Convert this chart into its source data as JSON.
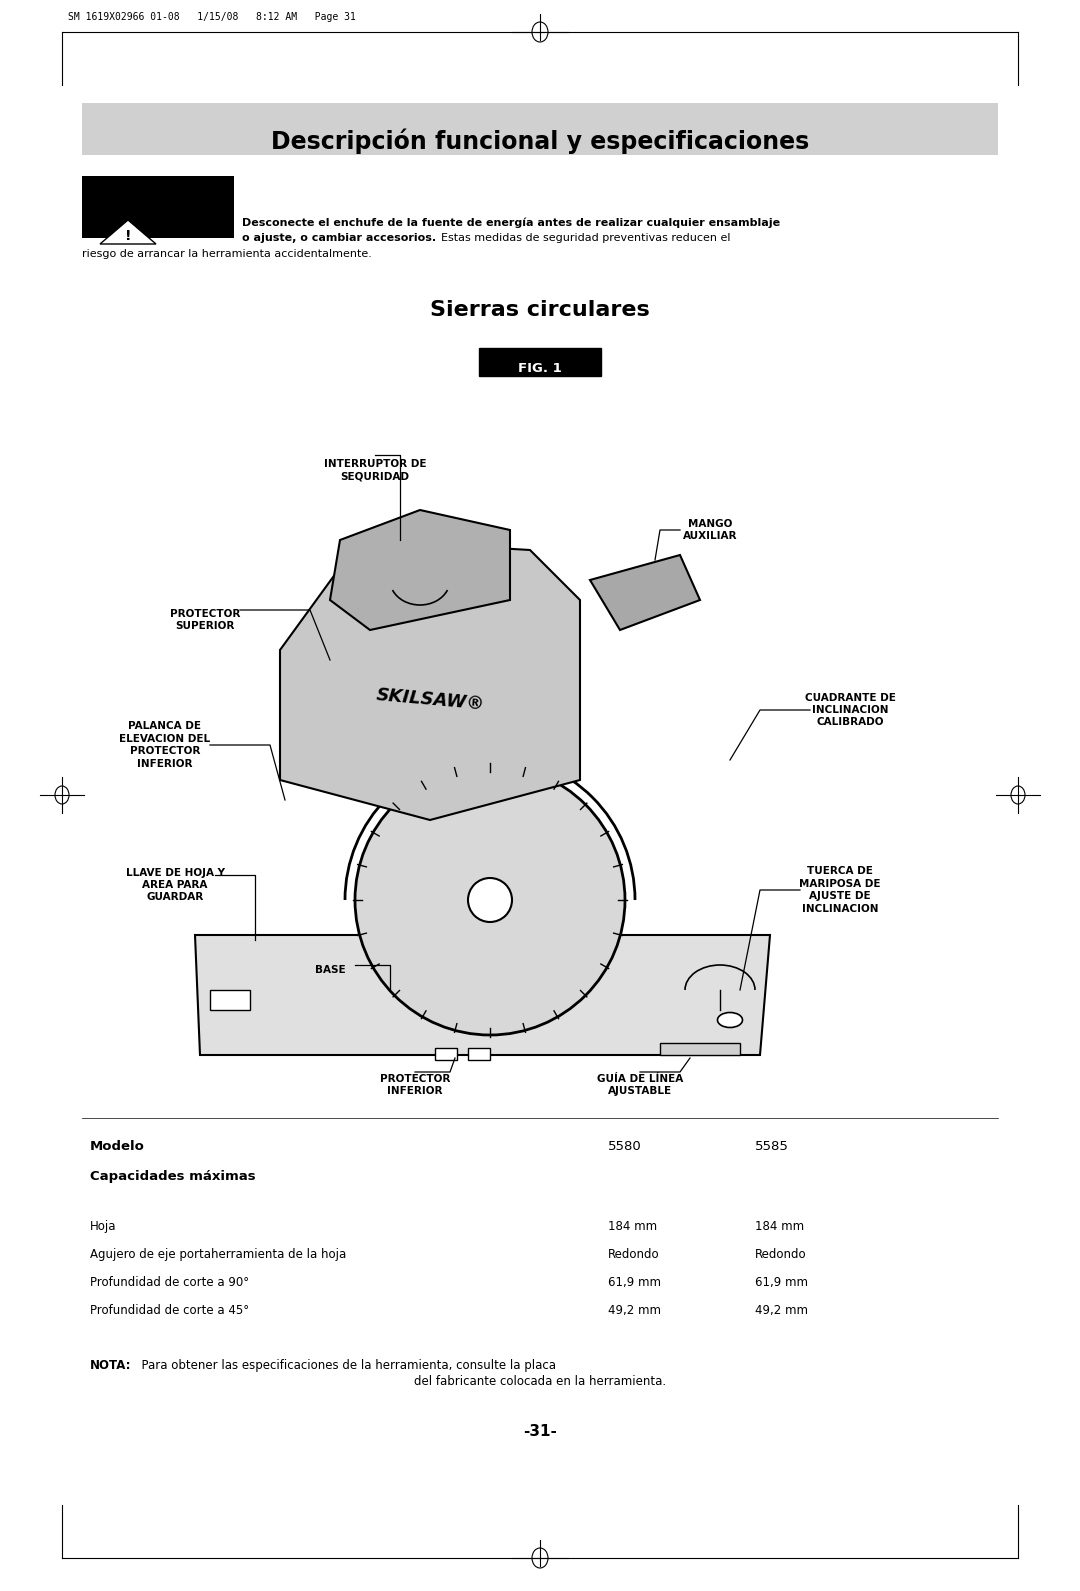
{
  "bg_color": "#ffffff",
  "page_header": "SM 1619X02966 01-08   1/15/08   8:12 AM   Page 31",
  "title_box_color": "#d0d0d0",
  "title_text": "Descripción funcional y especificaciones",
  "warning_bold1": "Desconecte el enchufe de la fuente de energía antes de realizar cualquier ensamblaje",
  "warning_bold2": "o ajuste, o cambiar accesorios.",
  "warning_normal": "  Estas medidas de seguridad preventivas reducen el",
  "warning_normal2": "riesgo de arrancar la herramienta accidentalmente.",
  "section_title": "Sierras circulares",
  "fig_label": "FIG. 1",
  "lbl_interruptor": "INTERRUPTOR DE\nSEQURIDAD",
  "lbl_mango": "MANGO\nAUXILIAR",
  "lbl_protector_sup": "PROTECTOR\nSUPERIOR",
  "lbl_palanca": "PALANCA DE\nELEVACION DEL\nPROTECTOR\nINFERIOR",
  "lbl_cuadrante": "CUADRANTE DE\nINCLINACION\nCALIBRADO",
  "lbl_llave": "LLAVE DE HOJA Y\nAREA PARA\nGUARDAR",
  "lbl_base": "BASE",
  "lbl_tuerca": "TUERCA DE\nMARIPOSA DE\nAJUSTE DE\nINCLINACION",
  "lbl_prot_inf": "PROTECTOR\nINFERIOR",
  "lbl_guia": "GUÍA DE LÍNEA\nAJUSTABLE",
  "table_header_col1": "Modelo",
  "table_col2": "5580",
  "table_col3": "5585",
  "table_section": "Capacidades máximas",
  "table_rows": [
    [
      "Hoja",
      "184 mm",
      "184 mm"
    ],
    [
      "Agujero de eje portaherramienta de la hoja",
      "Redondo",
      "Redondo"
    ],
    [
      "Profundidad de corte a 90°",
      "61,9 mm",
      "61,9 mm"
    ],
    [
      "Profundidad de corte a 45°",
      "49,2 mm",
      "49,2 mm"
    ]
  ],
  "note_bold": "NOTA:",
  "note_line1": "  Para obtener las especificaciones de la herramienta, consulte la placa",
  "note_line2": "del fabricante colocada en la herramienta.",
  "page_number": "-31-"
}
